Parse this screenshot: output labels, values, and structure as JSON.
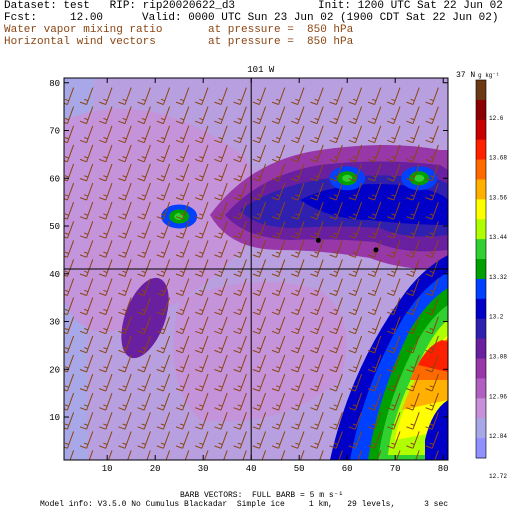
{
  "header": {
    "dataset_line": "Dataset: test   RIP: rip20020622_d3",
    "init_line": "Init: 1200 UTC Sat 22 Jun 02",
    "fcst_line": "Fcst:     12.00",
    "valid_line": "Valid: 0000 UTC Sun 23 Jun 02 (1900 CDT Sat 22 Jun 02)",
    "field1_name": "Water vapor mixing ratio",
    "field1_level": "at pressure =  850 hPa",
    "field2_name": "Horizontal wind vectors",
    "field2_level": "at pressure =  850 hPa"
  },
  "footer": {
    "barb_note": "BARB VECTORS:  FULL BARB = 5 m s⁻¹",
    "model_info": "Model info: V3.5.0 No Cumulus Blackadar  Simple ice     1 km,   29 levels,      3 sec"
  },
  "colors": {
    "plot_background": "#b8a0e0",
    "barb": "#8b4513",
    "border": "#000000"
  },
  "chart_data": {
    "type": "heatmap",
    "title": "",
    "xlabel": "",
    "ylabel": "",
    "x_ticks": [
      10,
      20,
      30,
      40,
      50,
      60,
      70,
      80
    ],
    "y_ticks": [
      10,
      20,
      30,
      40,
      50,
      60,
      70,
      80
    ],
    "xlim": [
      1,
      81
    ],
    "ylim": [
      1,
      81
    ],
    "top_label_1": "101 W",
    "top_label_2": "37 N",
    "colorbar_unit": "g kg⁻¹",
    "colorbar_labels": [
      "12.6",
      "13.68",
      "13.56",
      "13.44",
      "13.32",
      "13.2",
      "13.08",
      "12.96",
      "12.84",
      "12.72"
    ],
    "colorbar_colors": [
      "#6b3a14",
      "#8b0000",
      "#c80000",
      "#ff2000",
      "#ff6a00",
      "#ffb000",
      "#ffff00",
      "#b0ff00",
      "#30d030",
      "#00a000",
      "#0040ff",
      "#0000c8",
      "#3020b0",
      "#6820a0",
      "#9838a8",
      "#b060c0",
      "#c890d8",
      "#a8a8e8",
      "#9090ff"
    ],
    "wind_barbs": {
      "direction_deg": 200,
      "speed_full_barbs": 1.5,
      "grid_spacing": 4
    },
    "features": [
      {
        "name": "moist-bands",
        "type": "region"
      },
      {
        "name": "cell-a",
        "x": 25,
        "y": 52,
        "level": "13.2"
      },
      {
        "name": "cell-b",
        "x": 60,
        "y": 60,
        "level": "13.2"
      },
      {
        "name": "cell-c",
        "x": 75,
        "y": 60,
        "level": "13.2"
      },
      {
        "name": "dry-core",
        "x": 18,
        "y": 30,
        "level": "12.84"
      }
    ],
    "markers": [
      {
        "name": "station-1",
        "x": 54,
        "y": 47
      },
      {
        "name": "station-2",
        "x": 66,
        "y": 45
      }
    ],
    "boundaries": [
      {
        "name": "state-line-horizontal",
        "y": 41
      },
      {
        "name": "state-line-vertical",
        "x": 40
      }
    ]
  }
}
